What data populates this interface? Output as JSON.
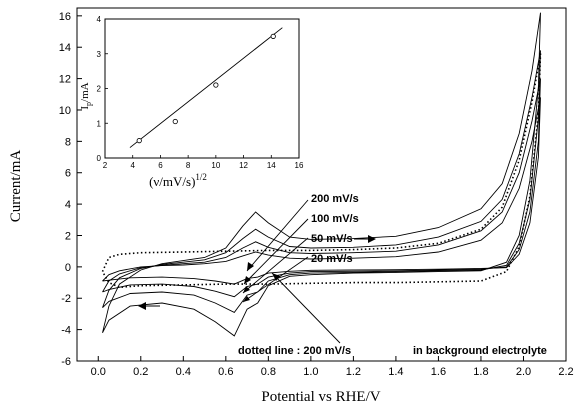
{
  "chart_data": [
    {
      "type": "line",
      "xlabel": "Potential vs RHE/V",
      "ylabel": "Current/mA",
      "xlim": [
        -0.1,
        2.2
      ],
      "ylim": [
        -6,
        16.5
      ],
      "xticks": [
        "0.0",
        "0.2",
        "0.4",
        "0.6",
        "0.8",
        "1.0",
        "1.2",
        "1.4",
        "1.6",
        "1.8",
        "2.0",
        "2.2"
      ],
      "yticks": [
        "-6",
        "-4",
        "-2",
        "0",
        "2",
        "4",
        "6",
        "8",
        "10",
        "12",
        "14",
        "16"
      ],
      "grid": false,
      "series": [
        {
          "name": "200 mV/s",
          "style": "solid",
          "forward": [
            [
              0.02,
              -4.2
            ],
            [
              0.05,
              -2.5
            ],
            [
              0.1,
              -1.1
            ],
            [
              0.2,
              -0.2
            ],
            [
              0.3,
              0.2
            ],
            [
              0.4,
              0.4
            ],
            [
              0.5,
              0.6
            ],
            [
              0.6,
              1.2
            ],
            [
              0.68,
              2.6
            ],
            [
              0.74,
              3.5
            ],
            [
              0.8,
              2.8
            ],
            [
              0.9,
              1.9
            ],
            [
              1.0,
              1.75
            ],
            [
              1.2,
              1.8
            ],
            [
              1.4,
              1.95
            ],
            [
              1.6,
              2.5
            ],
            [
              1.8,
              3.7
            ],
            [
              1.9,
              5.3
            ],
            [
              1.98,
              8.5
            ],
            [
              2.04,
              12.5
            ],
            [
              2.08,
              16.2
            ]
          ],
          "reverse": [
            [
              2.08,
              16.2
            ],
            [
              2.07,
              11.5
            ],
            [
              2.03,
              5.5
            ],
            [
              1.98,
              2.0
            ],
            [
              1.92,
              0.3
            ],
            [
              1.8,
              -0.25
            ],
            [
              1.6,
              -0.3
            ],
            [
              1.4,
              -0.35
            ],
            [
              1.2,
              -0.4
            ],
            [
              1.0,
              -0.5
            ],
            [
              0.9,
              -0.6
            ],
            [
              0.8,
              -1.2
            ],
            [
              0.75,
              -2.3
            ],
            [
              0.7,
              -2.7
            ],
            [
              0.64,
              -4.4
            ],
            [
              0.55,
              -3.5
            ],
            [
              0.45,
              -2.7
            ],
            [
              0.3,
              -2.3
            ],
            [
              0.15,
              -2.5
            ],
            [
              0.05,
              -3.4
            ],
            [
              0.02,
              -4.2
            ]
          ]
        },
        {
          "name": "100 mV/s",
          "style": "solid",
          "forward": [
            [
              0.02,
              -2.6
            ],
            [
              0.05,
              -1.5
            ],
            [
              0.1,
              -0.7
            ],
            [
              0.2,
              -0.1
            ],
            [
              0.3,
              0.15
            ],
            [
              0.4,
              0.3
            ],
            [
              0.5,
              0.45
            ],
            [
              0.6,
              0.9
            ],
            [
              0.68,
              1.8
            ],
            [
              0.74,
              2.4
            ],
            [
              0.8,
              1.9
            ],
            [
              0.9,
              1.3
            ],
            [
              1.0,
              1.2
            ],
            [
              1.2,
              1.25
            ],
            [
              1.4,
              1.4
            ],
            [
              1.6,
              1.9
            ],
            [
              1.8,
              2.9
            ],
            [
              1.9,
              4.3
            ],
            [
              1.98,
              7.2
            ],
            [
              2.04,
              10.8
            ],
            [
              2.08,
              13.8
            ]
          ],
          "reverse": [
            [
              2.08,
              13.8
            ],
            [
              2.07,
              9.5
            ],
            [
              2.03,
              4.3
            ],
            [
              1.98,
              1.5
            ],
            [
              1.92,
              0.1
            ],
            [
              1.8,
              -0.2
            ],
            [
              1.6,
              -0.25
            ],
            [
              1.4,
              -0.3
            ],
            [
              1.2,
              -0.35
            ],
            [
              1.0,
              -0.4
            ],
            [
              0.9,
              -0.5
            ],
            [
              0.8,
              -0.9
            ],
            [
              0.75,
              -1.6
            ],
            [
              0.7,
              -1.8
            ],
            [
              0.64,
              -2.9
            ],
            [
              0.55,
              -2.3
            ],
            [
              0.45,
              -1.8
            ],
            [
              0.3,
              -1.6
            ],
            [
              0.15,
              -1.7
            ],
            [
              0.05,
              -2.2
            ],
            [
              0.02,
              -2.6
            ]
          ]
        },
        {
          "name": "50 mV/s",
          "style": "solid",
          "forward": [
            [
              0.02,
              -1.6
            ],
            [
              0.05,
              -0.9
            ],
            [
              0.1,
              -0.45
            ],
            [
              0.2,
              -0.05
            ],
            [
              0.3,
              0.1
            ],
            [
              0.4,
              0.2
            ],
            [
              0.5,
              0.3
            ],
            [
              0.6,
              0.6
            ],
            [
              0.68,
              1.2
            ],
            [
              0.74,
              1.6
            ],
            [
              0.8,
              1.25
            ],
            [
              0.9,
              0.9
            ],
            [
              1.0,
              0.85
            ],
            [
              1.2,
              0.9
            ],
            [
              1.4,
              1.0
            ],
            [
              1.6,
              1.4
            ],
            [
              1.8,
              2.3
            ],
            [
              1.9,
              3.5
            ],
            [
              1.98,
              6.0
            ],
            [
              2.04,
              9.3
            ],
            [
              2.08,
              12.0
            ]
          ],
          "reverse": [
            [
              2.08,
              12.0
            ],
            [
              2.07,
              8.0
            ],
            [
              2.03,
              3.5
            ],
            [
              1.98,
              1.1
            ],
            [
              1.92,
              0.0
            ],
            [
              1.8,
              -0.15
            ],
            [
              1.6,
              -0.2
            ],
            [
              1.4,
              -0.25
            ],
            [
              1.2,
              -0.28
            ],
            [
              1.0,
              -0.3
            ],
            [
              0.9,
              -0.4
            ],
            [
              0.8,
              -0.65
            ],
            [
              0.75,
              -1.1
            ],
            [
              0.7,
              -1.25
            ],
            [
              0.64,
              -1.9
            ],
            [
              0.55,
              -1.55
            ],
            [
              0.45,
              -1.25
            ],
            [
              0.3,
              -1.1
            ],
            [
              0.15,
              -1.15
            ],
            [
              0.05,
              -1.45
            ],
            [
              0.02,
              -1.6
            ]
          ]
        },
        {
          "name": "20 mV/s",
          "style": "solid",
          "forward": [
            [
              0.02,
              -0.9
            ],
            [
              0.05,
              -0.5
            ],
            [
              0.1,
              -0.25
            ],
            [
              0.2,
              0.0
            ],
            [
              0.3,
              0.08
            ],
            [
              0.4,
              0.12
            ],
            [
              0.5,
              0.2
            ],
            [
              0.6,
              0.35
            ],
            [
              0.68,
              0.7
            ],
            [
              0.74,
              0.95
            ],
            [
              0.8,
              0.75
            ],
            [
              0.9,
              0.55
            ],
            [
              1.0,
              0.5
            ],
            [
              1.2,
              0.55
            ],
            [
              1.4,
              0.65
            ],
            [
              1.6,
              0.95
            ],
            [
              1.8,
              1.7
            ],
            [
              1.9,
              2.8
            ],
            [
              1.98,
              5.0
            ],
            [
              2.04,
              8.0
            ],
            [
              2.08,
              10.8
            ]
          ],
          "reverse": [
            [
              2.08,
              10.8
            ],
            [
              2.07,
              7.0
            ],
            [
              2.03,
              2.8
            ],
            [
              1.98,
              0.8
            ],
            [
              1.92,
              -0.05
            ],
            [
              1.8,
              -0.1
            ],
            [
              1.6,
              -0.15
            ],
            [
              1.4,
              -0.18
            ],
            [
              1.2,
              -0.2
            ],
            [
              1.0,
              -0.22
            ],
            [
              0.9,
              -0.28
            ],
            [
              0.8,
              -0.4
            ],
            [
              0.75,
              -0.65
            ],
            [
              0.7,
              -0.75
            ],
            [
              0.64,
              -1.1
            ],
            [
              0.55,
              -0.9
            ],
            [
              0.45,
              -0.75
            ],
            [
              0.3,
              -0.65
            ],
            [
              0.15,
              -0.7
            ],
            [
              0.05,
              -0.85
            ],
            [
              0.02,
              -0.9
            ]
          ]
        },
        {
          "name": "dotted line : 200 mV/s",
          "style": "dotted",
          "forward": [
            [
              0.02,
              -0.3
            ],
            [
              0.05,
              0.6
            ],
            [
              0.1,
              0.8
            ],
            [
              0.2,
              0.9
            ],
            [
              0.4,
              0.95
            ],
            [
              0.6,
              1.0
            ],
            [
              0.8,
              1.05
            ],
            [
              1.0,
              1.05
            ],
            [
              1.2,
              1.1
            ],
            [
              1.4,
              1.2
            ],
            [
              1.6,
              1.5
            ],
            [
              1.8,
              2.4
            ],
            [
              1.9,
              3.8
            ],
            [
              1.98,
              6.8
            ],
            [
              2.04,
              10.5
            ],
            [
              2.08,
              13.6
            ]
          ],
          "reverse": [
            [
              2.08,
              13.6
            ],
            [
              2.07,
              9.8
            ],
            [
              2.03,
              4.5
            ],
            [
              1.98,
              1.3
            ],
            [
              1.92,
              -0.3
            ],
            [
              1.8,
              -0.9
            ],
            [
              1.6,
              -0.95
            ],
            [
              1.4,
              -1.0
            ],
            [
              1.2,
              -1.0
            ],
            [
              1.0,
              -1.05
            ],
            [
              0.8,
              -1.1
            ],
            [
              0.6,
              -1.1
            ],
            [
              0.4,
              -1.15
            ],
            [
              0.2,
              -1.2
            ],
            [
              0.1,
              -1.3
            ],
            [
              0.05,
              -1.0
            ],
            [
              0.02,
              -0.3
            ]
          ]
        }
      ],
      "annotations": [
        {
          "text": "200 mV/s",
          "x": 1.2,
          "y": 8.0
        },
        {
          "text": "100 mV/s",
          "x": 1.2,
          "y": 6.9
        },
        {
          "text": "50 mV/s",
          "x": 1.2,
          "y": 5.7
        },
        {
          "text": "20 mV/s",
          "x": 1.2,
          "y": 4.5
        },
        {
          "text": "dotted line : 200 mV/s",
          "x": 1.04,
          "y": -4.7
        },
        {
          "text": "in background electrolyte",
          "x": 1.6,
          "y": -4.7
        }
      ]
    },
    {
      "type": "scatter",
      "xlabel": "(ν/mV/s)",
      "xlabel_sup": "1/2",
      "ylabel": "I",
      "ylabel_sub": "p",
      "ylabel_unit": "/mA",
      "xlim": [
        2,
        16
      ],
      "ylim": [
        0,
        4
      ],
      "xticks": [
        "2",
        "4",
        "6",
        "8",
        "10",
        "12",
        "14",
        "16"
      ],
      "yticks": [
        "0",
        "1",
        "2",
        "3",
        "4"
      ],
      "points": [
        [
          4.47,
          0.5
        ],
        [
          7.07,
          1.05
        ],
        [
          10.0,
          2.1
        ],
        [
          14.14,
          3.5
        ]
      ],
      "fit_line": [
        [
          3.8,
          0.3
        ],
        [
          14.8,
          3.75
        ]
      ]
    }
  ]
}
